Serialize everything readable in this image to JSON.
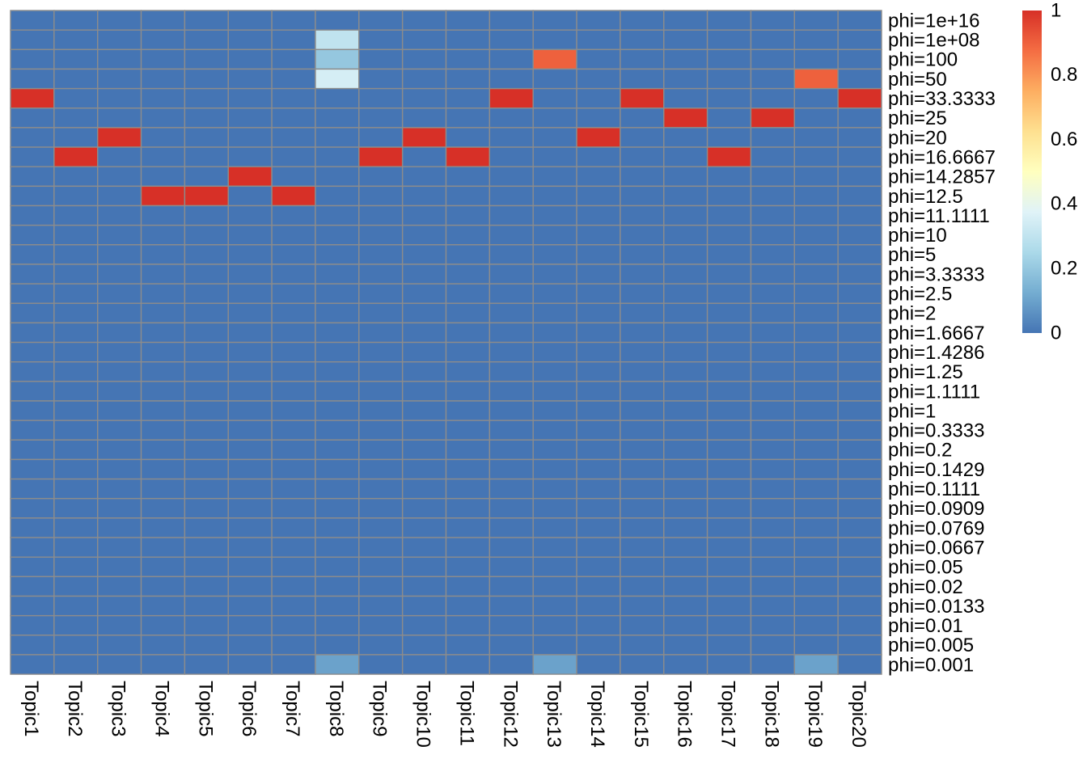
{
  "chart_data": {
    "type": "heatmap",
    "columns": [
      "Topic1",
      "Topic2",
      "Topic3",
      "Topic4",
      "Topic5",
      "Topic6",
      "Topic7",
      "Topic8",
      "Topic9",
      "Topic10",
      "Topic11",
      "Topic12",
      "Topic13",
      "Topic14",
      "Topic15",
      "Topic16",
      "Topic17",
      "Topic18",
      "Topic19",
      "Topic20"
    ],
    "rows": [
      "phi=1e+16",
      "phi=1e+08",
      "phi=100",
      "phi=50",
      "phi=33.3333",
      "phi=25",
      "phi=20",
      "phi=16.6667",
      "phi=14.2857",
      "phi=12.5",
      "phi=11.1111",
      "phi=10",
      "phi=5",
      "phi=3.3333",
      "phi=2.5",
      "phi=2",
      "phi=1.6667",
      "phi=1.4286",
      "phi=1.25",
      "phi=1.1111",
      "phi=1",
      "phi=0.3333",
      "phi=0.2",
      "phi=0.1429",
      "phi=0.1111",
      "phi=0.0909",
      "phi=0.0769",
      "phi=0.0667",
      "phi=0.05",
      "phi=0.02",
      "phi=0.0133",
      "phi=0.01",
      "phi=0.005",
      "phi=0.001"
    ],
    "values": [
      [
        0,
        0,
        0,
        0,
        0,
        0,
        0,
        0,
        0,
        0,
        0,
        0,
        0,
        0,
        0,
        0,
        0,
        0,
        0,
        0
      ],
      [
        0,
        0,
        0,
        0,
        0,
        0,
        0,
        0.3,
        0,
        0,
        0,
        0,
        0,
        0,
        0,
        0,
        0,
        0,
        0,
        0
      ],
      [
        0,
        0,
        0,
        0,
        0,
        0,
        0,
        0.2,
        0,
        0,
        0,
        0,
        0.9,
        0,
        0,
        0,
        0,
        0,
        0,
        0
      ],
      [
        0,
        0,
        0,
        0,
        0,
        0,
        0,
        0.35,
        0,
        0,
        0,
        0,
        0,
        0,
        0,
        0,
        0,
        0,
        0.9,
        0
      ],
      [
        1,
        0,
        0,
        0,
        0,
        0,
        0,
        0,
        0,
        0,
        0,
        1,
        0,
        0,
        1,
        0,
        0,
        0,
        0,
        1
      ],
      [
        0,
        0,
        0,
        0,
        0,
        0,
        0,
        0,
        0,
        0,
        0,
        0,
        0,
        0,
        0,
        1,
        0,
        1,
        0,
        0
      ],
      [
        0,
        0,
        1,
        0,
        0,
        0,
        0,
        0,
        0,
        1,
        0,
        0,
        0,
        1,
        0,
        0,
        0,
        0,
        0,
        0
      ],
      [
        0,
        1,
        0,
        0,
        0,
        0,
        0,
        0,
        1,
        0,
        1,
        0,
        0,
        0,
        0,
        0,
        1,
        0,
        0,
        0
      ],
      [
        0,
        0,
        0,
        0,
        0,
        1,
        0,
        0,
        0,
        0,
        0,
        0,
        0,
        0,
        0,
        0,
        0,
        0,
        0,
        0
      ],
      [
        0,
        0,
        0,
        1,
        1,
        0,
        1,
        0,
        0,
        0,
        0,
        0,
        0,
        0,
        0,
        0,
        0,
        0,
        0,
        0
      ],
      [
        0,
        0,
        0,
        0,
        0,
        0,
        0,
        0,
        0,
        0,
        0,
        0,
        0,
        0,
        0,
        0,
        0,
        0,
        0,
        0
      ],
      [
        0,
        0,
        0,
        0,
        0,
        0,
        0,
        0,
        0,
        0,
        0,
        0,
        0,
        0,
        0,
        0,
        0,
        0,
        0,
        0
      ],
      [
        0,
        0,
        0,
        0,
        0,
        0,
        0,
        0,
        0,
        0,
        0,
        0,
        0,
        0,
        0,
        0,
        0,
        0,
        0,
        0
      ],
      [
        0,
        0,
        0,
        0,
        0,
        0,
        0,
        0,
        0,
        0,
        0,
        0,
        0,
        0,
        0,
        0,
        0,
        0,
        0,
        0
      ],
      [
        0,
        0,
        0,
        0,
        0,
        0,
        0,
        0,
        0,
        0,
        0,
        0,
        0,
        0,
        0,
        0,
        0,
        0,
        0,
        0
      ],
      [
        0,
        0,
        0,
        0,
        0,
        0,
        0,
        0,
        0,
        0,
        0,
        0,
        0,
        0,
        0,
        0,
        0,
        0,
        0,
        0
      ],
      [
        0,
        0,
        0,
        0,
        0,
        0,
        0,
        0,
        0,
        0,
        0,
        0,
        0,
        0,
        0,
        0,
        0,
        0,
        0,
        0
      ],
      [
        0,
        0,
        0,
        0,
        0,
        0,
        0,
        0,
        0,
        0,
        0,
        0,
        0,
        0,
        0,
        0,
        0,
        0,
        0,
        0
      ],
      [
        0,
        0,
        0,
        0,
        0,
        0,
        0,
        0,
        0,
        0,
        0,
        0,
        0,
        0,
        0,
        0,
        0,
        0,
        0,
        0
      ],
      [
        0,
        0,
        0,
        0,
        0,
        0,
        0,
        0,
        0,
        0,
        0,
        0,
        0,
        0,
        0,
        0,
        0,
        0,
        0,
        0
      ],
      [
        0,
        0,
        0,
        0,
        0,
        0,
        0,
        0,
        0,
        0,
        0,
        0,
        0,
        0,
        0,
        0,
        0,
        0,
        0,
        0
      ],
      [
        0,
        0,
        0,
        0,
        0,
        0,
        0,
        0,
        0,
        0,
        0,
        0,
        0,
        0,
        0,
        0,
        0,
        0,
        0,
        0
      ],
      [
        0,
        0,
        0,
        0,
        0,
        0,
        0,
        0,
        0,
        0,
        0,
        0,
        0,
        0,
        0,
        0,
        0,
        0,
        0,
        0
      ],
      [
        0,
        0,
        0,
        0,
        0,
        0,
        0,
        0,
        0,
        0,
        0,
        0,
        0,
        0,
        0,
        0,
        0,
        0,
        0,
        0
      ],
      [
        0,
        0,
        0,
        0,
        0,
        0,
        0,
        0,
        0,
        0,
        0,
        0,
        0,
        0,
        0,
        0,
        0,
        0,
        0,
        0
      ],
      [
        0,
        0,
        0,
        0,
        0,
        0,
        0,
        0,
        0,
        0,
        0,
        0,
        0,
        0,
        0,
        0,
        0,
        0,
        0,
        0
      ],
      [
        0,
        0,
        0,
        0,
        0,
        0,
        0,
        0,
        0,
        0,
        0,
        0,
        0,
        0,
        0,
        0,
        0,
        0,
        0,
        0
      ],
      [
        0,
        0,
        0,
        0,
        0,
        0,
        0,
        0,
        0,
        0,
        0,
        0,
        0,
        0,
        0,
        0,
        0,
        0,
        0,
        0
      ],
      [
        0,
        0,
        0,
        0,
        0,
        0,
        0,
        0,
        0,
        0,
        0,
        0,
        0,
        0,
        0,
        0,
        0,
        0,
        0,
        0
      ],
      [
        0,
        0,
        0,
        0,
        0,
        0,
        0,
        0,
        0,
        0,
        0,
        0,
        0,
        0,
        0,
        0,
        0,
        0,
        0,
        0
      ],
      [
        0,
        0,
        0,
        0,
        0,
        0,
        0,
        0,
        0,
        0,
        0,
        0,
        0,
        0,
        0,
        0,
        0,
        0,
        0,
        0
      ],
      [
        0,
        0,
        0,
        0,
        0,
        0,
        0,
        0,
        0,
        0,
        0,
        0,
        0,
        0,
        0,
        0,
        0,
        0,
        0,
        0
      ],
      [
        0,
        0,
        0,
        0,
        0,
        0,
        0,
        0,
        0,
        0,
        0,
        0,
        0,
        0,
        0,
        0,
        0,
        0,
        0,
        0
      ],
      [
        0,
        0,
        0,
        0,
        0,
        0,
        0,
        0.1,
        0,
        0,
        0,
        0,
        0.1,
        0,
        0,
        0,
        0,
        0,
        0.1,
        0
      ]
    ],
    "value_range": [
      0,
      1
    ],
    "legend": {
      "ticks": [
        "1",
        "0.8",
        "0.6",
        "0.4",
        "0.2",
        "0"
      ],
      "tick_values": [
        1,
        0.8,
        0.6,
        0.4,
        0.2,
        0
      ],
      "placement": "right"
    },
    "colormap": [
      "#4575b4",
      "#74add1",
      "#abd9e9",
      "#e0f3f8",
      "#ffffbf",
      "#fee090",
      "#fdae61",
      "#f46d43",
      "#d73027"
    ],
    "grid": true,
    "title": "",
    "xlabel": "",
    "ylabel": ""
  }
}
